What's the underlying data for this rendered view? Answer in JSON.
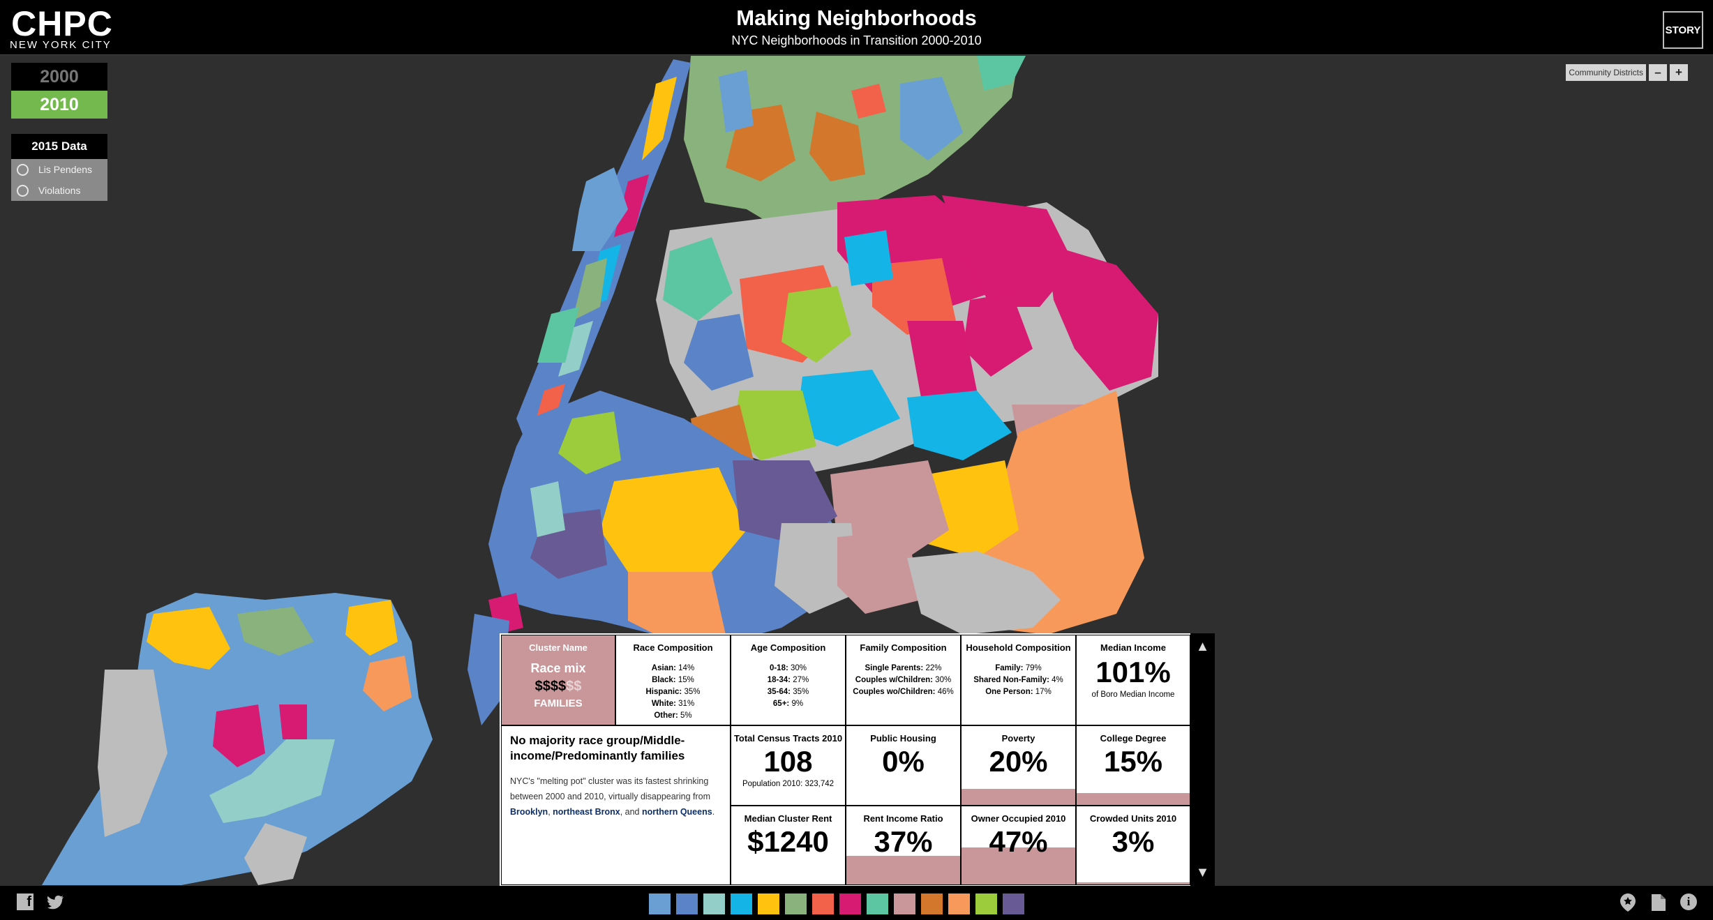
{
  "header": {
    "logo_big": "CHPC",
    "logo_small": "NEW YORK CITY",
    "title": "Making Neighborhoods",
    "subtitle": "NYC Neighborhoods in Transition 2000-2010",
    "story_label": "STORY"
  },
  "years": {
    "y2000": "2000",
    "y2010": "2010"
  },
  "data2015": {
    "heading": "2015 Data",
    "options": [
      "Lis Pendens",
      "Violations"
    ]
  },
  "map_controls": {
    "layer_label": "Community Districts",
    "zoom_out": "–",
    "zoom_in": "+"
  },
  "colors": {
    "accent_green": "#74b94d",
    "cluster_pink": "#c9969a"
  },
  "cluster": {
    "label": "Cluster Name",
    "name": "Race mix",
    "dollars_bold": "$$$$",
    "dollars_faint": "$$",
    "type": "FAMILIES"
  },
  "race": {
    "title": "Race Composition",
    "rows": [
      [
        "Asian:",
        "14%"
      ],
      [
        "Black:",
        "15%"
      ],
      [
        "Hispanic:",
        "35%"
      ],
      [
        "White:",
        "31%"
      ],
      [
        "Other:",
        "5%"
      ]
    ]
  },
  "age": {
    "title": "Age Composition",
    "rows": [
      [
        "0-18:",
        "30%"
      ],
      [
        "18-34:",
        "27%"
      ],
      [
        "35-64:",
        "35%"
      ],
      [
        "65+:",
        "9%"
      ]
    ]
  },
  "family": {
    "title": "Family Composition",
    "rows": [
      [
        "Single Parents:",
        "22%"
      ],
      [
        "Couples w/Children:",
        "30%"
      ],
      [
        "Couples wo/Children:",
        "46%"
      ]
    ]
  },
  "household": {
    "title": "Household Composition",
    "rows": [
      [
        "Family:",
        "79%"
      ],
      [
        "Shared Non-Family:",
        "4%"
      ],
      [
        "One Person:",
        "17%"
      ]
    ]
  },
  "median_income": {
    "title": "Median Income",
    "value": "101%",
    "note": "of Boro Median Income"
  },
  "description": {
    "heading": "No majority race group/Middle-income/Predominantly families",
    "text1": "NYC's \"melting pot\" cluster was its fastest shrinking between 2000 and 2010, virtually disappearing from ",
    "link1": "Brooklyn",
    "sep1": ", ",
    "link2": "northeast Bronx",
    "sep2": ", and ",
    "link3": "northern Queens",
    "end": "."
  },
  "stats": {
    "tracts": {
      "title": "Total Census Tracts 2010",
      "value": "108",
      "note": "Population 2010: 323,742"
    },
    "public_housing": {
      "title": "Public Housing",
      "value": "0%",
      "level": 0
    },
    "poverty": {
      "title": "Poverty",
      "value": "20%",
      "level": 20
    },
    "college": {
      "title": "College Degree",
      "value": "15%",
      "level": 15
    },
    "rent": {
      "title": "Median Cluster Rent",
      "value": "$1240"
    },
    "rent_ratio": {
      "title": "Rent Income Ratio",
      "value": "37%",
      "level": 37
    },
    "owner": {
      "title": "Owner Occupied 2010",
      "value": "47%",
      "level": 47
    },
    "crowded": {
      "title": "Crowded Units 2010",
      "value": "3%",
      "level": 3
    }
  },
  "legend_colors": [
    "#6a9fd4",
    "#5b83c7",
    "#93cfc8",
    "#14b4e6",
    "#ffc20e",
    "#8ab27d",
    "#f26149",
    "#d81b72",
    "#5cc6a2",
    "#c9969a",
    "#d2772c",
    "#f7995b",
    "#9ccc3c",
    "#675a95"
  ],
  "footer_icons": [
    "facebook-icon",
    "twitter-icon",
    "location-icon",
    "document-icon",
    "info-icon"
  ]
}
